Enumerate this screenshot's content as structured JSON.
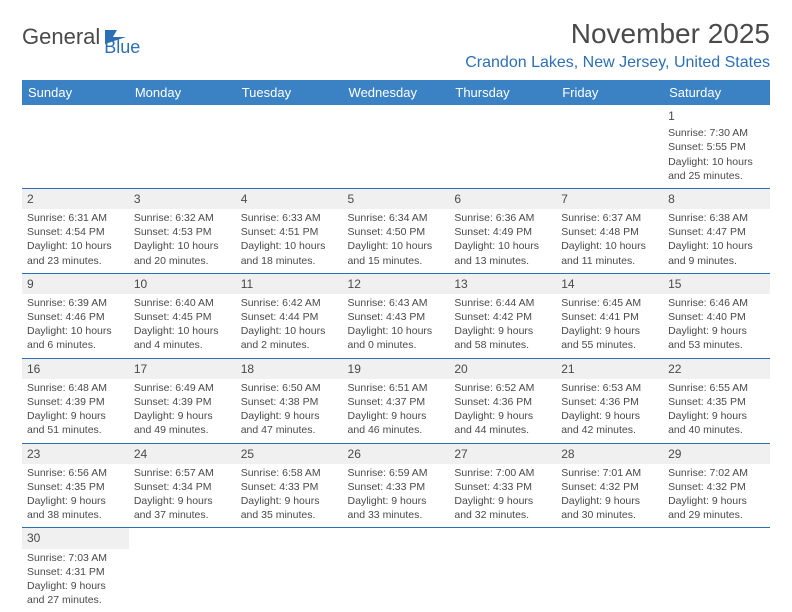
{
  "logo": {
    "main": "General",
    "sub": "Blue"
  },
  "title": "November 2025",
  "location": "Crandon Lakes, New Jersey, United States",
  "weekdays": [
    "Sunday",
    "Monday",
    "Tuesday",
    "Wednesday",
    "Thursday",
    "Friday",
    "Saturday"
  ],
  "colors": {
    "header_bg": "#3b82c4",
    "header_text": "#ffffff",
    "accent": "#2d6fb5",
    "body_text": "#4a4a4a",
    "daynum_bg": "#f0f0f0",
    "page_bg": "#ffffff"
  },
  "fonts": {
    "title_size_pt": 21,
    "location_size_pt": 12,
    "weekday_size_pt": 10,
    "daynum_size_pt": 9,
    "cell_size_pt": 8
  },
  "grid": {
    "cols": 7,
    "rows": 6,
    "leading_blanks": 6
  },
  "days": [
    {
      "n": "1",
      "sunrise": "Sunrise: 7:30 AM",
      "sunset": "Sunset: 5:55 PM",
      "daylight1": "Daylight: 10 hours",
      "daylight2": "and 25 minutes."
    },
    {
      "n": "2",
      "sunrise": "Sunrise: 6:31 AM",
      "sunset": "Sunset: 4:54 PM",
      "daylight1": "Daylight: 10 hours",
      "daylight2": "and 23 minutes."
    },
    {
      "n": "3",
      "sunrise": "Sunrise: 6:32 AM",
      "sunset": "Sunset: 4:53 PM",
      "daylight1": "Daylight: 10 hours",
      "daylight2": "and 20 minutes."
    },
    {
      "n": "4",
      "sunrise": "Sunrise: 6:33 AM",
      "sunset": "Sunset: 4:51 PM",
      "daylight1": "Daylight: 10 hours",
      "daylight2": "and 18 minutes."
    },
    {
      "n": "5",
      "sunrise": "Sunrise: 6:34 AM",
      "sunset": "Sunset: 4:50 PM",
      "daylight1": "Daylight: 10 hours",
      "daylight2": "and 15 minutes."
    },
    {
      "n": "6",
      "sunrise": "Sunrise: 6:36 AM",
      "sunset": "Sunset: 4:49 PM",
      "daylight1": "Daylight: 10 hours",
      "daylight2": "and 13 minutes."
    },
    {
      "n": "7",
      "sunrise": "Sunrise: 6:37 AM",
      "sunset": "Sunset: 4:48 PM",
      "daylight1": "Daylight: 10 hours",
      "daylight2": "and 11 minutes."
    },
    {
      "n": "8",
      "sunrise": "Sunrise: 6:38 AM",
      "sunset": "Sunset: 4:47 PM",
      "daylight1": "Daylight: 10 hours",
      "daylight2": "and 9 minutes."
    },
    {
      "n": "9",
      "sunrise": "Sunrise: 6:39 AM",
      "sunset": "Sunset: 4:46 PM",
      "daylight1": "Daylight: 10 hours",
      "daylight2": "and 6 minutes."
    },
    {
      "n": "10",
      "sunrise": "Sunrise: 6:40 AM",
      "sunset": "Sunset: 4:45 PM",
      "daylight1": "Daylight: 10 hours",
      "daylight2": "and 4 minutes."
    },
    {
      "n": "11",
      "sunrise": "Sunrise: 6:42 AM",
      "sunset": "Sunset: 4:44 PM",
      "daylight1": "Daylight: 10 hours",
      "daylight2": "and 2 minutes."
    },
    {
      "n": "12",
      "sunrise": "Sunrise: 6:43 AM",
      "sunset": "Sunset: 4:43 PM",
      "daylight1": "Daylight: 10 hours",
      "daylight2": "and 0 minutes."
    },
    {
      "n": "13",
      "sunrise": "Sunrise: 6:44 AM",
      "sunset": "Sunset: 4:42 PM",
      "daylight1": "Daylight: 9 hours",
      "daylight2": "and 58 minutes."
    },
    {
      "n": "14",
      "sunrise": "Sunrise: 6:45 AM",
      "sunset": "Sunset: 4:41 PM",
      "daylight1": "Daylight: 9 hours",
      "daylight2": "and 55 minutes."
    },
    {
      "n": "15",
      "sunrise": "Sunrise: 6:46 AM",
      "sunset": "Sunset: 4:40 PM",
      "daylight1": "Daylight: 9 hours",
      "daylight2": "and 53 minutes."
    },
    {
      "n": "16",
      "sunrise": "Sunrise: 6:48 AM",
      "sunset": "Sunset: 4:39 PM",
      "daylight1": "Daylight: 9 hours",
      "daylight2": "and 51 minutes."
    },
    {
      "n": "17",
      "sunrise": "Sunrise: 6:49 AM",
      "sunset": "Sunset: 4:39 PM",
      "daylight1": "Daylight: 9 hours",
      "daylight2": "and 49 minutes."
    },
    {
      "n": "18",
      "sunrise": "Sunrise: 6:50 AM",
      "sunset": "Sunset: 4:38 PM",
      "daylight1": "Daylight: 9 hours",
      "daylight2": "and 47 minutes."
    },
    {
      "n": "19",
      "sunrise": "Sunrise: 6:51 AM",
      "sunset": "Sunset: 4:37 PM",
      "daylight1": "Daylight: 9 hours",
      "daylight2": "and 46 minutes."
    },
    {
      "n": "20",
      "sunrise": "Sunrise: 6:52 AM",
      "sunset": "Sunset: 4:36 PM",
      "daylight1": "Daylight: 9 hours",
      "daylight2": "and 44 minutes."
    },
    {
      "n": "21",
      "sunrise": "Sunrise: 6:53 AM",
      "sunset": "Sunset: 4:36 PM",
      "daylight1": "Daylight: 9 hours",
      "daylight2": "and 42 minutes."
    },
    {
      "n": "22",
      "sunrise": "Sunrise: 6:55 AM",
      "sunset": "Sunset: 4:35 PM",
      "daylight1": "Daylight: 9 hours",
      "daylight2": "and 40 minutes."
    },
    {
      "n": "23",
      "sunrise": "Sunrise: 6:56 AM",
      "sunset": "Sunset: 4:35 PM",
      "daylight1": "Daylight: 9 hours",
      "daylight2": "and 38 minutes."
    },
    {
      "n": "24",
      "sunrise": "Sunrise: 6:57 AM",
      "sunset": "Sunset: 4:34 PM",
      "daylight1": "Daylight: 9 hours",
      "daylight2": "and 37 minutes."
    },
    {
      "n": "25",
      "sunrise": "Sunrise: 6:58 AM",
      "sunset": "Sunset: 4:33 PM",
      "daylight1": "Daylight: 9 hours",
      "daylight2": "and 35 minutes."
    },
    {
      "n": "26",
      "sunrise": "Sunrise: 6:59 AM",
      "sunset": "Sunset: 4:33 PM",
      "daylight1": "Daylight: 9 hours",
      "daylight2": "and 33 minutes."
    },
    {
      "n": "27",
      "sunrise": "Sunrise: 7:00 AM",
      "sunset": "Sunset: 4:33 PM",
      "daylight1": "Daylight: 9 hours",
      "daylight2": "and 32 minutes."
    },
    {
      "n": "28",
      "sunrise": "Sunrise: 7:01 AM",
      "sunset": "Sunset: 4:32 PM",
      "daylight1": "Daylight: 9 hours",
      "daylight2": "and 30 minutes."
    },
    {
      "n": "29",
      "sunrise": "Sunrise: 7:02 AM",
      "sunset": "Sunset: 4:32 PM",
      "daylight1": "Daylight: 9 hours",
      "daylight2": "and 29 minutes."
    },
    {
      "n": "30",
      "sunrise": "Sunrise: 7:03 AM",
      "sunset": "Sunset: 4:31 PM",
      "daylight1": "Daylight: 9 hours",
      "daylight2": "and 27 minutes."
    }
  ]
}
